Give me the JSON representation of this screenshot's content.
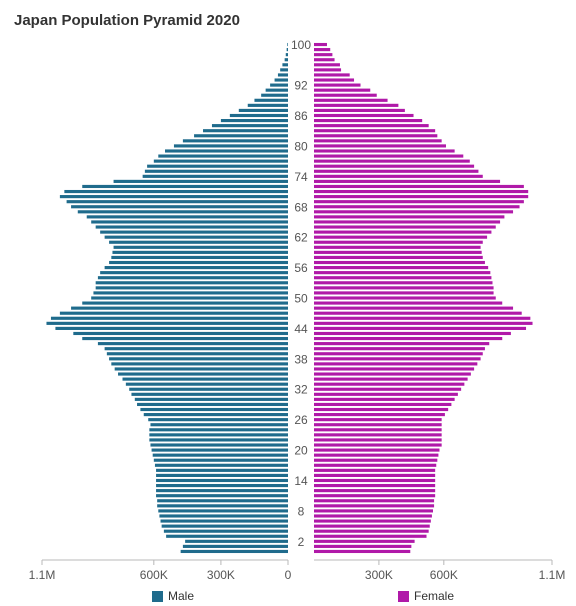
{
  "chart_data": {
    "type": "bar",
    "orientation": "horizontal",
    "title": "Japan Population Pyramid 2020",
    "x": [
      0,
      1,
      2,
      3,
      4,
      5,
      6,
      7,
      8,
      9,
      10,
      11,
      12,
      13,
      14,
      15,
      16,
      17,
      18,
      19,
      20,
      21,
      22,
      23,
      24,
      25,
      26,
      27,
      28,
      29,
      30,
      31,
      32,
      33,
      34,
      35,
      36,
      37,
      38,
      39,
      40,
      41,
      42,
      43,
      44,
      45,
      46,
      47,
      48,
      49,
      50,
      51,
      52,
      53,
      54,
      55,
      56,
      57,
      58,
      59,
      60,
      61,
      62,
      63,
      64,
      65,
      66,
      67,
      68,
      69,
      70,
      71,
      72,
      73,
      74,
      75,
      76,
      77,
      78,
      79,
      80,
      81,
      82,
      83,
      84,
      85,
      86,
      87,
      88,
      89,
      90,
      91,
      92,
      93,
      94,
      95,
      96,
      97,
      98,
      99,
      100
    ],
    "y_tick_labels": [
      "2",
      "8",
      "14",
      "20",
      "26",
      "32",
      "38",
      "44",
      "50",
      "56",
      "62",
      "68",
      "74",
      "80",
      "86",
      "92",
      "100"
    ],
    "x_tick_labels": {
      "left": [
        "1.1M",
        "600K",
        "300K",
        "0"
      ],
      "right": [
        "300K",
        "600K",
        "1.1M"
      ]
    },
    "series": [
      {
        "name": "Male",
        "color": "#1f6b8c",
        "values": [
          480000,
          470000,
          460000,
          545000,
          555000,
          565000,
          570000,
          575000,
          580000,
          585000,
          585000,
          590000,
          590000,
          590000,
          590000,
          590000,
          590000,
          595000,
          600000,
          605000,
          610000,
          615000,
          620000,
          620000,
          620000,
          615000,
          625000,
          645000,
          660000,
          675000,
          685000,
          700000,
          710000,
          725000,
          740000,
          760000,
          775000,
          790000,
          800000,
          810000,
          820000,
          850000,
          920000,
          960000,
          1040000,
          1080000,
          1060000,
          1020000,
          970000,
          920000,
          880000,
          870000,
          860000,
          860000,
          850000,
          840000,
          820000,
          800000,
          790000,
          785000,
          780000,
          800000,
          820000,
          840000,
          860000,
          880000,
          900000,
          940000,
          970000,
          990000,
          1020000,
          1000000,
          920000,
          780000,
          650000,
          640000,
          630000,
          600000,
          580000,
          550000,
          510000,
          470000,
          420000,
          380000,
          340000,
          300000,
          260000,
          220000,
          180000,
          150000,
          120000,
          100000,
          80000,
          60000,
          45000,
          35000,
          25000,
          15000,
          10000,
          6000,
          3000
        ]
      },
      {
        "name": "Female",
        "color": "#b019a8",
        "values": [
          445000,
          450000,
          465000,
          520000,
          530000,
          535000,
          540000,
          545000,
          550000,
          555000,
          555000,
          560000,
          560000,
          560000,
          560000,
          560000,
          560000,
          565000,
          570000,
          575000,
          580000,
          590000,
          590000,
          590000,
          590000,
          590000,
          590000,
          605000,
          620000,
          635000,
          650000,
          665000,
          680000,
          695000,
          710000,
          725000,
          740000,
          755000,
          770000,
          780000,
          790000,
          810000,
          870000,
          910000,
          980000,
          1010000,
          1000000,
          960000,
          920000,
          870000,
          840000,
          830000,
          830000,
          825000,
          820000,
          815000,
          805000,
          790000,
          780000,
          775000,
          770000,
          780000,
          800000,
          820000,
          840000,
          860000,
          880000,
          920000,
          950000,
          970000,
          990000,
          990000,
          970000,
          860000,
          780000,
          760000,
          740000,
          720000,
          690000,
          650000,
          610000,
          590000,
          570000,
          560000,
          530000,
          500000,
          460000,
          420000,
          390000,
          340000,
          290000,
          260000,
          215000,
          185000,
          165000,
          125000,
          120000,
          95000,
          85000,
          75000,
          60000
        ]
      }
    ],
    "xlim": [
      0,
      1100000
    ],
    "legend": "bottom",
    "grid": false
  }
}
